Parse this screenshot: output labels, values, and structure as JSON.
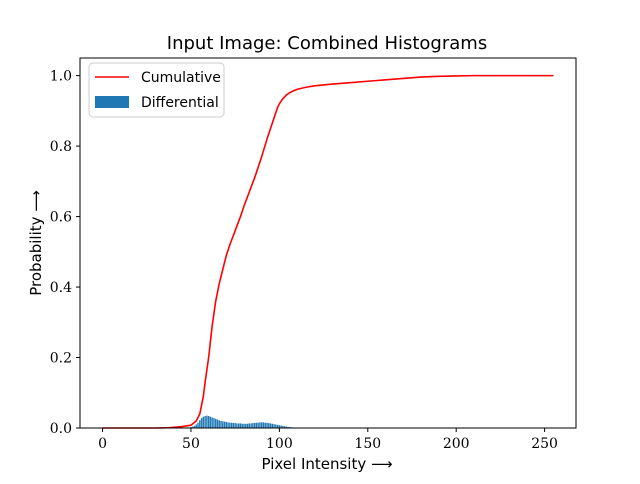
{
  "chart_data": {
    "type": "bar",
    "title": "Input Image: Combined Histograms",
    "xlabel": "Pixel Intensity ⟶",
    "ylabel": "Probability ⟶",
    "xlim": [
      -12.75,
      267.75
    ],
    "ylim": [
      0,
      1.05
    ],
    "xticks": [
      0,
      50,
      100,
      150,
      200,
      250
    ],
    "yticks": [
      0.0,
      0.2,
      0.4,
      0.6,
      0.8,
      1.0
    ],
    "xtick_labels": [
      "0",
      "50",
      "100",
      "150",
      "200",
      "250"
    ],
    "ytick_labels": [
      "0.0",
      "0.2",
      "0.4",
      "0.6",
      "0.8",
      "1.0"
    ],
    "grid": false,
    "legend_position": "top-left",
    "colors": {
      "cumulative": "#ff0000",
      "differential": "#1f77b4"
    },
    "series": [
      {
        "name": "Cumulative",
        "kind": "line",
        "x": [
          0,
          10,
          20,
          30,
          38,
          45,
          50,
          53,
          55,
          57,
          58,
          60,
          62,
          64,
          66,
          68,
          70,
          72,
          75,
          78,
          80,
          83,
          86,
          90,
          93,
          95,
          97,
          99,
          100,
          102,
          104,
          106,
          108,
          110,
          115,
          120,
          130,
          140,
          150,
          160,
          170,
          180,
          190,
          200,
          210,
          220,
          230,
          240,
          250,
          255
        ],
        "y": [
          0.0,
          0.0,
          0.0,
          0.0,
          0.001,
          0.004,
          0.008,
          0.02,
          0.04,
          0.09,
          0.13,
          0.2,
          0.29,
          0.36,
          0.41,
          0.45,
          0.49,
          0.52,
          0.56,
          0.6,
          0.63,
          0.67,
          0.71,
          0.77,
          0.82,
          0.85,
          0.88,
          0.91,
          0.92,
          0.935,
          0.945,
          0.952,
          0.957,
          0.961,
          0.967,
          0.971,
          0.976,
          0.98,
          0.984,
          0.988,
          0.992,
          0.996,
          0.998,
          0.999,
          1.0,
          1.0,
          1.0,
          1.0,
          1.0,
          1.0
        ]
      },
      {
        "name": "Differential",
        "kind": "bar",
        "x": [
          38,
          40,
          42,
          44,
          46,
          48,
          50,
          51,
          52,
          53,
          54,
          55,
          56,
          57,
          58,
          59,
          60,
          61,
          62,
          63,
          64,
          65,
          66,
          67,
          68,
          69,
          70,
          71,
          72,
          73,
          74,
          75,
          76,
          77,
          78,
          79,
          80,
          81,
          82,
          83,
          84,
          85,
          86,
          87,
          88,
          89,
          90,
          91,
          92,
          93,
          94,
          95,
          96,
          97,
          98,
          99,
          100,
          101,
          102,
          103,
          104,
          105,
          106,
          107,
          108,
          109,
          110,
          112,
          114
        ],
        "values": [
          0.0005,
          0.0008,
          0.001,
          0.0012,
          0.0015,
          0.002,
          0.003,
          0.004,
          0.006,
          0.01,
          0.015,
          0.022,
          0.028,
          0.032,
          0.034,
          0.035,
          0.034,
          0.032,
          0.03,
          0.028,
          0.026,
          0.024,
          0.022,
          0.02,
          0.019,
          0.018,
          0.017,
          0.016,
          0.015,
          0.015,
          0.014,
          0.014,
          0.013,
          0.013,
          0.013,
          0.012,
          0.012,
          0.012,
          0.012,
          0.013,
          0.013,
          0.014,
          0.014,
          0.015,
          0.015,
          0.016,
          0.016,
          0.016,
          0.015,
          0.015,
          0.014,
          0.013,
          0.012,
          0.011,
          0.01,
          0.009,
          0.008,
          0.007,
          0.006,
          0.005,
          0.004,
          0.003,
          0.0025,
          0.002,
          0.0015,
          0.001,
          0.0008,
          0.0005,
          0.0003
        ]
      }
    ]
  }
}
